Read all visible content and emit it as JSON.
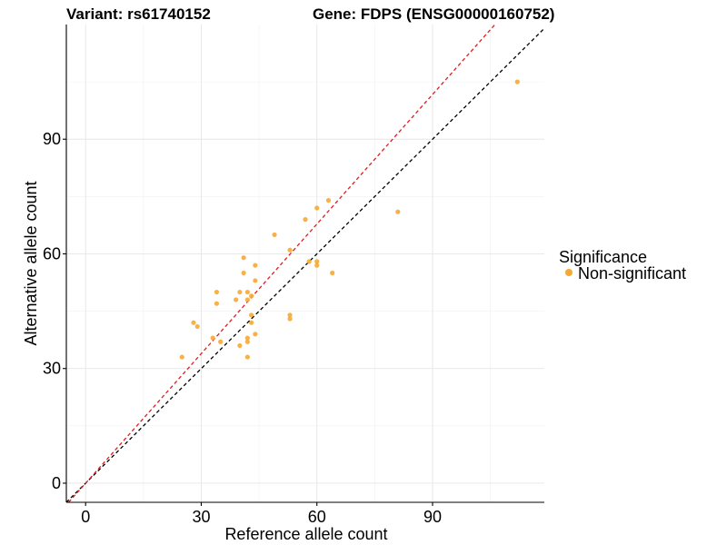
{
  "chart_data": {
    "type": "scatter",
    "title_left": "Variant: rs61740152",
    "title_right": "Gene: FDPS (ENSG00000160752)",
    "xlabel": "Reference allele count",
    "ylabel": "Alternative allele count",
    "xlim": [
      -5,
      119
    ],
    "ylim": [
      -5,
      120
    ],
    "xticks": [
      0,
      30,
      60,
      90
    ],
    "yticks": [
      0,
      30,
      60,
      90
    ],
    "grid": true,
    "legend": {
      "title": "Significance",
      "position": "right",
      "entries": [
        {
          "label": "Non-significant",
          "color": "#f6a833"
        }
      ]
    },
    "reference_lines": [
      {
        "slope": 1.0,
        "intercept": 0,
        "color": "#000000",
        "style": "dashed"
      },
      {
        "slope": 1.13,
        "intercept": 0,
        "color": "#e31a1c",
        "style": "dashed"
      }
    ],
    "series": [
      {
        "name": "Non-significant",
        "color": "#f6a833",
        "points": [
          [
            25,
            33
          ],
          [
            28,
            42
          ],
          [
            29,
            41
          ],
          [
            33,
            38
          ],
          [
            34,
            50
          ],
          [
            34,
            47
          ],
          [
            35,
            37
          ],
          [
            39,
            48
          ],
          [
            40,
            50
          ],
          [
            40,
            36
          ],
          [
            41,
            59
          ],
          [
            41,
            55
          ],
          [
            42,
            50
          ],
          [
            42,
            48
          ],
          [
            42,
            38
          ],
          [
            42,
            37
          ],
          [
            42,
            33
          ],
          [
            43,
            49
          ],
          [
            43,
            44
          ],
          [
            43,
            42
          ],
          [
            44,
            57
          ],
          [
            44,
            53
          ],
          [
            44,
            39
          ],
          [
            49,
            65
          ],
          [
            53,
            61
          ],
          [
            53,
            44
          ],
          [
            53,
            43
          ],
          [
            57,
            69
          ],
          [
            58,
            58
          ],
          [
            60,
            72
          ],
          [
            60,
            58
          ],
          [
            60,
            57
          ],
          [
            63,
            74
          ],
          [
            64,
            55
          ],
          [
            81,
            71
          ],
          [
            112,
            105
          ]
        ]
      }
    ]
  }
}
